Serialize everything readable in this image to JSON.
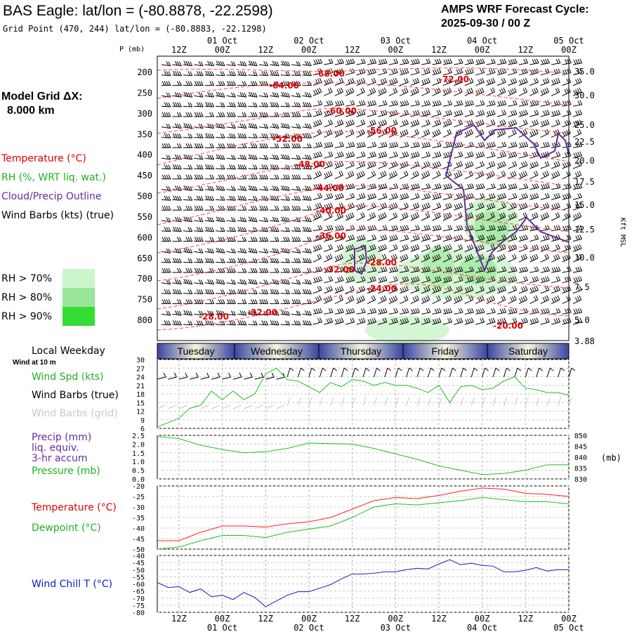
{
  "header": {
    "title": "BAS Eagle:  lat/lon = (-80.8878, -22.2598)",
    "grid_point": "Grid Point (470, 244) lat/lon = (-80.8883, -22.1298)",
    "forecast_title": "AMPS WRF Forecast Cycle:",
    "forecast_cycle": "2025-09-30 / 00  Z"
  },
  "model_grid": {
    "label": "Model Grid ΔX:",
    "value": "8.000 km"
  },
  "time_axis": {
    "hour_labels": [
      "12Z",
      "00Z",
      "12Z",
      "00Z",
      "12Z",
      "00Z",
      "12Z",
      "00Z",
      "12Z",
      "00Z"
    ],
    "date_labels": [
      "01 Oct",
      "02 Oct",
      "03 Oct",
      "04 Oct",
      "05 Oct"
    ],
    "weekdays": [
      "Tuesday",
      "Wednesday",
      "Thursday",
      "Friday",
      "Saturday"
    ],
    "local_weekday_label": "Local Weekday",
    "wind_10m_label": "Wind at 10 m"
  },
  "legend": {
    "temperature": "Temperature (°C)",
    "rh": "RH (%, WRT liq. wat.)",
    "cloud": "Cloud/Precip Outline",
    "wind_barbs": "Wind Barbs (kts) (true)",
    "rh_levels": [
      "RH > 70%",
      "RH > 80%",
      "RH > 90%"
    ],
    "rh_colors": [
      "#ccf5cc",
      "#99e699",
      "#33dd33"
    ]
  },
  "colors": {
    "temperature": "#ff2020",
    "dewpoint": "#20c020",
    "windchill": "#1020c0",
    "cloud": "#6a2a9a",
    "isotherm": "#e00000",
    "weekday_dark": "#3a46a0",
    "weekday_light": "#f0f0d8"
  },
  "chart_data": [
    {
      "type": "line",
      "title": "",
      "panel": "time-height cross section",
      "p_axis_label": "P (mb)",
      "p_levels": [
        200,
        250,
        300,
        350,
        400,
        450,
        500,
        550,
        600,
        650,
        700,
        750,
        800
      ],
      "height_axis_label": "Kft MSL",
      "height_labels": [
        "35.0",
        "30.0",
        "25.0",
        "22.5",
        "20.0",
        "17.5",
        "15.0",
        "12.5",
        "10.0",
        "7.5",
        "5.0",
        "3.88"
      ],
      "isotherm_labels": [
        "-68.00",
        "-64.00",
        "-72.00",
        "-60.00",
        "-56.00",
        "-52.00",
        "-48.00",
        "-44.00",
        "-40.00",
        "-36.00",
        "-32.00",
        "-28.00",
        "-24.00",
        "-32.00",
        "-28.00",
        "-20.00"
      ]
    },
    {
      "type": "line",
      "title": "",
      "labels": {
        "wind_spd": "Wind Spd (kts)",
        "barbs_true": "Wind Barbs (true)",
        "barbs_grid": "Wind Barbs (grid)"
      },
      "x": [
        "09-30 06Z",
        "09-30 09Z",
        "09-30 12Z",
        "09-30 15Z",
        "09-30 18Z",
        "09-30 21Z",
        "10-01 00Z",
        "10-01 03Z",
        "10-01 06Z",
        "10-01 09Z",
        "10-01 12Z",
        "10-01 15Z",
        "10-01 18Z",
        "10-01 21Z",
        "10-02 00Z",
        "10-02 03Z",
        "10-02 06Z",
        "10-02 09Z",
        "10-02 12Z",
        "10-02 15Z",
        "10-02 18Z",
        "10-02 21Z",
        "10-03 00Z",
        "10-03 03Z",
        "10-03 06Z",
        "10-03 09Z",
        "10-03 12Z",
        "10-03 15Z",
        "10-03 18Z",
        "10-03 21Z",
        "10-04 00Z",
        "10-04 03Z",
        "10-04 06Z",
        "10-04 09Z",
        "10-04 12Z",
        "10-04 15Z",
        "10-04 18Z",
        "10-04 21Z",
        "10-05 00Z"
      ],
      "y_ticks": [
        6,
        9,
        12,
        15,
        18,
        21,
        24,
        27,
        30
      ],
      "ylim": [
        6,
        30
      ],
      "series": [
        {
          "name": "Wind Spd (kts)",
          "values": [
            6.5,
            8,
            9.5,
            13,
            14,
            19,
            16,
            19,
            16,
            18,
            25,
            27,
            23,
            22.5,
            20.5,
            18.5,
            22,
            20.5,
            23,
            22.5,
            21,
            22,
            21,
            21,
            20,
            18.5,
            21,
            15,
            20.5,
            21,
            19.5,
            20,
            22.5,
            24,
            20,
            19.5,
            18.5,
            18.5,
            17.5
          ]
        }
      ]
    },
    {
      "type": "line",
      "title": "",
      "labels": {
        "precip": "Precip (mm)",
        "precip2": "liq. equiv.",
        "precip3": "3-hr accum",
        "pressure": "Pressure (mb)"
      },
      "y_ticks_left": [
        "0.0",
        "0.5",
        "1.0",
        "1.5",
        "2.0",
        "2.5"
      ],
      "y_ticks_right": [
        "830",
        "835",
        "840",
        "845",
        "850"
      ],
      "y_unit_right": "(mb)",
      "ylim_right": [
        830,
        850
      ],
      "x": [
        "09-30 06Z",
        "09-30 12Z",
        "09-30 18Z",
        "10-01 00Z",
        "10-01 06Z",
        "10-01 12Z",
        "10-01 18Z",
        "10-02 00Z",
        "10-02 06Z",
        "10-02 12Z",
        "10-02 18Z",
        "10-03 00Z",
        "10-03 06Z",
        "10-03 12Z",
        "10-03 18Z",
        "10-04 00Z",
        "10-04 06Z",
        "10-04 12Z",
        "10-04 18Z",
        "10-05 00Z"
      ],
      "series": [
        {
          "name": "Pressure (mb)",
          "values": [
            849.5,
            848.5,
            845.5,
            843.5,
            842,
            842.5,
            844,
            846.5,
            846.2,
            846,
            844,
            841.5,
            839,
            836,
            834,
            832,
            832.5,
            834,
            836.5,
            836.5
          ]
        }
      ]
    },
    {
      "type": "line",
      "title": "",
      "labels": {
        "temperature": "Temperature (°C)",
        "dewpoint": "Dewpoint (°C)"
      },
      "y_ticks": [
        -50,
        -45,
        -40,
        -35,
        -30,
        -25,
        -20
      ],
      "ylim": [
        -50,
        -20
      ],
      "x": [
        "09-30 06Z",
        "09-30 12Z",
        "09-30 18Z",
        "10-01 00Z",
        "10-01 06Z",
        "10-01 12Z",
        "10-01 18Z",
        "10-02 00Z",
        "10-02 06Z",
        "10-02 12Z",
        "10-02 18Z",
        "10-03 00Z",
        "10-03 06Z",
        "10-03 12Z",
        "10-03 18Z",
        "10-04 00Z",
        "10-04 06Z",
        "10-04 12Z",
        "10-04 18Z",
        "10-05 00Z"
      ],
      "series": [
        {
          "name": "Temperature (°C)",
          "values": [
            -46,
            -46,
            -42,
            -39,
            -39,
            -39.5,
            -38,
            -37,
            -35,
            -31,
            -27,
            -25.5,
            -26,
            -24.5,
            -22.5,
            -21,
            -21.5,
            -23.5,
            -24,
            -25
          ]
        },
        {
          "name": "Dewpoint (°C)",
          "values": [
            -50,
            -49,
            -46,
            -43.5,
            -43.5,
            -44.5,
            -42,
            -40.5,
            -39,
            -35,
            -30,
            -28.5,
            -29,
            -28,
            -27,
            -25.5,
            -26.5,
            -27.5,
            -27.5,
            -28.5
          ]
        }
      ]
    },
    {
      "type": "line",
      "title": "",
      "labels": {
        "windchill": "Wind Chill T (°C)"
      },
      "y_ticks": [
        -80,
        -75,
        -70,
        -65,
        -60,
        -55,
        -50,
        -45,
        -40
      ],
      "ylim": [
        -80,
        -40
      ],
      "x": [
        "09-30 06Z",
        "09-30 09Z",
        "09-30 12Z",
        "09-30 15Z",
        "09-30 18Z",
        "09-30 21Z",
        "10-01 00Z",
        "10-01 03Z",
        "10-01 06Z",
        "10-01 09Z",
        "10-01 12Z",
        "10-01 15Z",
        "10-01 18Z",
        "10-01 21Z",
        "10-02 00Z",
        "10-02 03Z",
        "10-02 06Z",
        "10-02 09Z",
        "10-02 12Z",
        "10-02 15Z",
        "10-02 18Z",
        "10-02 21Z",
        "10-03 00Z",
        "10-03 03Z",
        "10-03 06Z",
        "10-03 09Z",
        "10-03 12Z",
        "10-03 15Z",
        "10-03 18Z",
        "10-03 21Z",
        "10-04 00Z",
        "10-04 03Z",
        "10-04 06Z",
        "10-04 09Z",
        "10-04 12Z",
        "10-04 15Z",
        "10-04 18Z",
        "10-04 21Z",
        "10-05 00Z"
      ],
      "series": [
        {
          "name": "Wind Chill T (°C)",
          "values": [
            -59,
            -62.5,
            -62,
            -66,
            -63.5,
            -69,
            -68,
            -71,
            -66,
            -69.5,
            -76,
            -72,
            -68,
            -65.5,
            -65.5,
            -63,
            -60.5,
            -56.5,
            -53,
            -53,
            -52.5,
            -51.5,
            -51.5,
            -50,
            -49,
            -49.5,
            -46,
            -43,
            -46.5,
            -45.5,
            -47,
            -47.5,
            -51.5,
            -51.5,
            -50.5,
            -48.5,
            -51,
            -50,
            -50
          ]
        }
      ]
    }
  ]
}
